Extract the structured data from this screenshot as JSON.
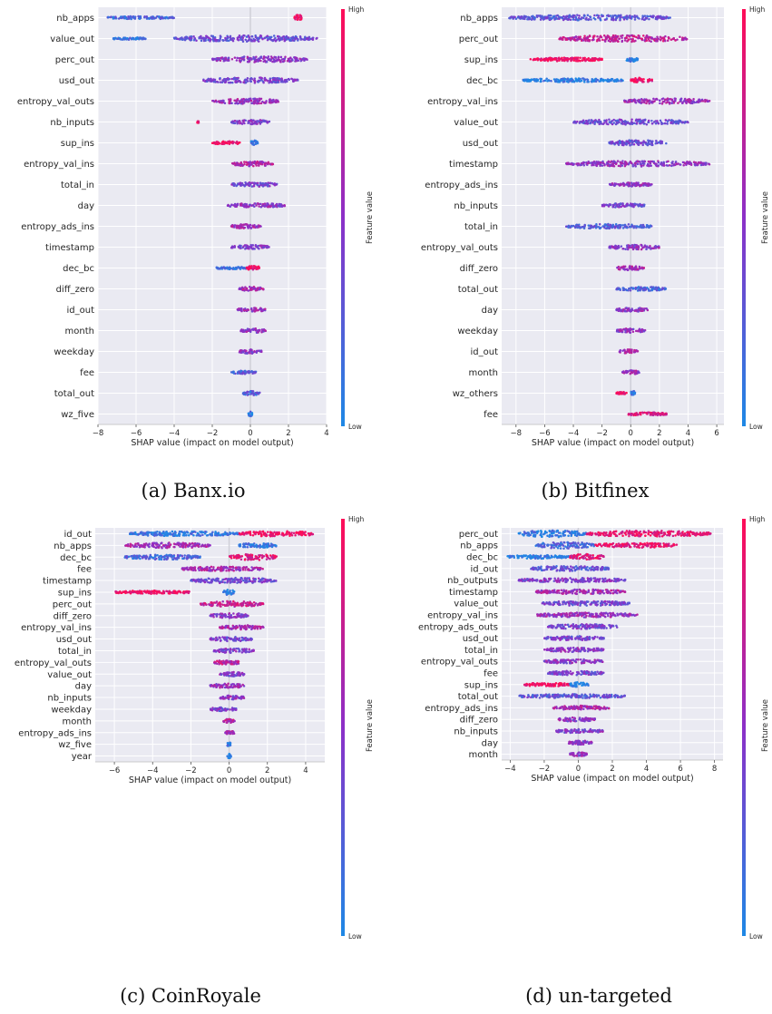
{
  "chart_data": [
    {
      "type": "scatter",
      "caption": "(a) Banx.io",
      "xlabel": "SHAP value (impact on model output)",
      "xlim": [
        -8,
        4
      ],
      "xticks": [
        -8,
        -6,
        -4,
        -2,
        0,
        2,
        4
      ],
      "colorbar": {
        "title": "Feature value",
        "high": "High",
        "low": "Low"
      },
      "features": [
        {
          "name": "nb_apps",
          "segments": [
            [
              -7.5,
              -4.0,
              1.0,
              0.2
            ],
            [
              2.3,
              2.7,
              3.0,
              0.95
            ]
          ]
        },
        {
          "name": "value_out",
          "segments": [
            [
              -7.2,
              -5.5,
              0.6,
              0.1
            ],
            [
              -4.0,
              3.5,
              2.8,
              0.35
            ]
          ]
        },
        {
          "name": "perc_out",
          "segments": [
            [
              -2.0,
              3.0,
              2.6,
              0.5
            ]
          ]
        },
        {
          "name": "usd_out",
          "segments": [
            [
              -2.5,
              2.5,
              2.4,
              0.4
            ]
          ]
        },
        {
          "name": "entropy_val_outs",
          "segments": [
            [
              -2.0,
              1.5,
              2.4,
              0.55
            ]
          ]
        },
        {
          "name": "nb_inputs",
          "segments": [
            [
              -2.8,
              -2.7,
              0.4,
              0.9
            ],
            [
              -1.0,
              1.0,
              2.0,
              0.45
            ]
          ]
        },
        {
          "name": "sup_ins",
          "segments": [
            [
              -2.0,
              -0.5,
              1.2,
              0.95
            ],
            [
              0.0,
              0.4,
              2.2,
              0.05
            ]
          ]
        },
        {
          "name": "entropy_val_ins",
          "segments": [
            [
              -1.0,
              1.2,
              2.0,
              0.65
            ]
          ]
        },
        {
          "name": "total_in",
          "segments": [
            [
              -1.0,
              1.4,
              1.8,
              0.4
            ]
          ]
        },
        {
          "name": "day",
          "segments": [
            [
              -1.2,
              1.8,
              1.8,
              0.5
            ]
          ]
        },
        {
          "name": "entropy_ads_ins",
          "segments": [
            [
              -1.0,
              0.6,
              1.8,
              0.6
            ]
          ]
        },
        {
          "name": "timestamp",
          "segments": [
            [
              -1.0,
              1.0,
              1.8,
              0.45
            ]
          ]
        },
        {
          "name": "dec_bc",
          "segments": [
            [
              -1.8,
              -0.2,
              0.8,
              0.1
            ],
            [
              -0.2,
              0.5,
              2.0,
              0.9
            ]
          ]
        },
        {
          "name": "diff_zero",
          "segments": [
            [
              -0.6,
              0.7,
              1.8,
              0.6
            ]
          ]
        },
        {
          "name": "id_out",
          "segments": [
            [
              -0.7,
              0.8,
              1.8,
              0.55
            ]
          ]
        },
        {
          "name": "month",
          "segments": [
            [
              -0.5,
              0.8,
              1.7,
              0.5
            ]
          ]
        },
        {
          "name": "weekday",
          "segments": [
            [
              -0.6,
              0.6,
              1.7,
              0.5
            ]
          ]
        },
        {
          "name": "fee",
          "segments": [
            [
              -1.0,
              0.3,
              1.2,
              0.25
            ]
          ]
        },
        {
          "name": "total_out",
          "segments": [
            [
              -0.4,
              0.5,
              1.7,
              0.25
            ]
          ]
        },
        {
          "name": "wz_five",
          "segments": [
            [
              -0.1,
              0.1,
              2.2,
              0.1
            ]
          ]
        }
      ]
    },
    {
      "type": "scatter",
      "caption": "(b) Bitfinex",
      "xlabel": "SHAP value (impact on model output)",
      "xlim": [
        -9,
        6.5
      ],
      "xticks": [
        -8,
        -6,
        -4,
        -2,
        0,
        2,
        4,
        6
      ],
      "colorbar": {
        "title": "Feature value",
        "high": "High",
        "low": "Low"
      },
      "features": [
        {
          "name": "nb_apps",
          "segments": [
            [
              -8.5,
              2.8,
              2.4,
              0.3
            ]
          ]
        },
        {
          "name": "perc_out",
          "segments": [
            [
              -5.0,
              4.0,
              3.0,
              0.7
            ]
          ]
        },
        {
          "name": "sup_ins",
          "segments": [
            [
              -7.0,
              -2.0,
              1.4,
              0.95
            ],
            [
              -0.3,
              0.5,
              2.2,
              0.05
            ]
          ]
        },
        {
          "name": "dec_bc",
          "segments": [
            [
              -7.5,
              -0.5,
              1.4,
              0.05
            ],
            [
              0.0,
              1.5,
              2.4,
              0.9
            ]
          ]
        },
        {
          "name": "entropy_val_ins",
          "segments": [
            [
              -0.5,
              5.5,
              2.4,
              0.55
            ]
          ]
        },
        {
          "name": "value_out",
          "segments": [
            [
              -4.0,
              4.0,
              2.4,
              0.35
            ]
          ]
        },
        {
          "name": "usd_out",
          "segments": [
            [
              -1.5,
              2.5,
              2.4,
              0.35
            ]
          ]
        },
        {
          "name": "timestamp",
          "segments": [
            [
              -4.5,
              5.5,
              2.4,
              0.5
            ]
          ]
        },
        {
          "name": "entropy_ads_ins",
          "segments": [
            [
              -1.5,
              1.5,
              1.6,
              0.55
            ]
          ]
        },
        {
          "name": "nb_inputs",
          "segments": [
            [
              -2.0,
              1.0,
              1.6,
              0.4
            ]
          ]
        },
        {
          "name": "total_in",
          "segments": [
            [
              -4.5,
              1.5,
              2.0,
              0.25
            ]
          ]
        },
        {
          "name": "entropy_val_outs",
          "segments": [
            [
              -1.5,
              2.0,
              2.0,
              0.5
            ]
          ]
        },
        {
          "name": "diff_zero",
          "segments": [
            [
              -1.0,
              1.0,
              1.8,
              0.6
            ]
          ]
        },
        {
          "name": "total_out",
          "segments": [
            [
              -1.0,
              2.5,
              1.6,
              0.2
            ]
          ]
        },
        {
          "name": "day",
          "segments": [
            [
              -1.0,
              1.2,
              1.6,
              0.5
            ]
          ]
        },
        {
          "name": "weekday",
          "segments": [
            [
              -1.0,
              1.0,
              1.6,
              0.5
            ]
          ]
        },
        {
          "name": "id_out",
          "segments": [
            [
              -0.8,
              0.5,
              1.6,
              0.6
            ]
          ]
        },
        {
          "name": "month",
          "segments": [
            [
              -0.6,
              0.6,
              1.6,
              0.55
            ]
          ]
        },
        {
          "name": "wz_others",
          "segments": [
            [
              -1.0,
              -0.3,
              0.8,
              0.95
            ],
            [
              0.0,
              0.3,
              2.0,
              0.05
            ]
          ]
        },
        {
          "name": "fee",
          "segments": [
            [
              -0.2,
              2.5,
              1.2,
              0.85
            ]
          ]
        }
      ]
    },
    {
      "type": "scatter",
      "caption": "(c) CoinRoyale",
      "xlabel": "SHAP value (impact on model output)",
      "xlim": [
        -7,
        5
      ],
      "xticks": [
        -6,
        -4,
        -2,
        0,
        2,
        4
      ],
      "colorbar": {
        "title": "Feature value",
        "high": "High",
        "low": "Low"
      },
      "features": [
        {
          "name": "id_out",
          "segments": [
            [
              -5.2,
              0.5,
              2.0,
              0.1
            ],
            [
              0.5,
              4.5,
              2.4,
              0.95
            ]
          ]
        },
        {
          "name": "nb_apps",
          "segments": [
            [
              -5.5,
              -1.0,
              2.4,
              0.6
            ],
            [
              0.5,
              2.5,
              2.0,
              0.1
            ]
          ]
        },
        {
          "name": "dec_bc",
          "segments": [
            [
              -5.5,
              -1.5,
              2.0,
              0.2
            ],
            [
              0.0,
              2.5,
              2.8,
              0.85
            ]
          ]
        },
        {
          "name": "fee",
          "segments": [
            [
              -2.5,
              1.8,
              1.8,
              0.6
            ]
          ]
        },
        {
          "name": "timestamp",
          "segments": [
            [
              -2.0,
              2.5,
              2.4,
              0.4
            ]
          ]
        },
        {
          "name": "sup_ins",
          "segments": [
            [
              -6.0,
              -2.0,
              1.2,
              0.95
            ],
            [
              -0.3,
              0.3,
              2.4,
              0.05
            ]
          ]
        },
        {
          "name": "perc_out",
          "segments": [
            [
              -1.5,
              1.8,
              2.4,
              0.75
            ]
          ]
        },
        {
          "name": "diff_zero",
          "segments": [
            [
              -1.0,
              1.0,
              2.0,
              0.5
            ]
          ]
        },
        {
          "name": "entropy_val_ins",
          "segments": [
            [
              -0.5,
              1.8,
              1.8,
              0.6
            ]
          ]
        },
        {
          "name": "usd_out",
          "segments": [
            [
              -1.0,
              1.2,
              1.8,
              0.4
            ]
          ]
        },
        {
          "name": "total_in",
          "segments": [
            [
              -0.8,
              1.3,
              1.8,
              0.45
            ]
          ]
        },
        {
          "name": "entropy_val_outs",
          "segments": [
            [
              -0.8,
              0.6,
              1.8,
              0.7
            ]
          ]
        },
        {
          "name": "value_out",
          "segments": [
            [
              -0.5,
              0.8,
              1.8,
              0.45
            ]
          ]
        },
        {
          "name": "day",
          "segments": [
            [
              -1.0,
              0.8,
              1.8,
              0.55
            ]
          ]
        },
        {
          "name": "nb_inputs",
          "segments": [
            [
              -0.5,
              0.8,
              1.6,
              0.5
            ]
          ]
        },
        {
          "name": "weekday",
          "segments": [
            [
              -1.0,
              0.4,
              1.6,
              0.4
            ]
          ]
        },
        {
          "name": "month",
          "segments": [
            [
              -0.3,
              0.3,
              1.6,
              0.7
            ]
          ]
        },
        {
          "name": "entropy_ads_ins",
          "segments": [
            [
              -0.2,
              0.3,
              1.4,
              0.6
            ]
          ]
        },
        {
          "name": "wz_five",
          "segments": [
            [
              -0.1,
              0.1,
              2.2,
              0.1
            ]
          ]
        },
        {
          "name": "year",
          "segments": [
            [
              -0.1,
              0.1,
              2.0,
              0.1
            ]
          ]
        }
      ]
    },
    {
      "type": "scatter",
      "caption": "(d) un-targeted",
      "xlabel": "SHAP value (impact on model output)",
      "xlim": [
        -4.5,
        8.5
      ],
      "xticks": [
        -4,
        -2,
        0,
        2,
        4,
        6,
        8
      ],
      "colorbar": {
        "title": "Feature value",
        "high": "High",
        "low": "Low"
      },
      "features": [
        {
          "name": "perc_out",
          "segments": [
            [
              -3.5,
              0.5,
              3.2,
              0.1
            ],
            [
              0.5,
              7.8,
              2.6,
              0.9
            ]
          ]
        },
        {
          "name": "nb_apps",
          "segments": [
            [
              -2.5,
              1.0,
              3.0,
              0.2
            ],
            [
              1.0,
              5.8,
              2.0,
              0.9
            ]
          ]
        },
        {
          "name": "dec_bc",
          "segments": [
            [
              -4.2,
              -0.5,
              1.4,
              0.05
            ],
            [
              -0.5,
              1.5,
              2.6,
              0.85
            ]
          ]
        },
        {
          "name": "id_out",
          "segments": [
            [
              -2.8,
              1.8,
              2.2,
              0.3
            ]
          ]
        },
        {
          "name": "nb_outputs",
          "segments": [
            [
              -3.5,
              2.8,
              1.8,
              0.45
            ]
          ]
        },
        {
          "name": "timestamp",
          "segments": [
            [
              -2.5,
              2.8,
              2.0,
              0.6
            ]
          ]
        },
        {
          "name": "value_out",
          "segments": [
            [
              -2.2,
              3.0,
              2.0,
              0.4
            ]
          ]
        },
        {
          "name": "entropy_val_ins",
          "segments": [
            [
              -2.5,
              3.5,
              2.0,
              0.55
            ]
          ]
        },
        {
          "name": "entropy_ads_outs",
          "segments": [
            [
              -1.8,
              2.3,
              2.0,
              0.4
            ]
          ]
        },
        {
          "name": "usd_out",
          "segments": [
            [
              -2.0,
              1.5,
              1.8,
              0.4
            ]
          ]
        },
        {
          "name": "total_in",
          "segments": [
            [
              -2.0,
              1.5,
              1.8,
              0.5
            ]
          ]
        },
        {
          "name": "entropy_val_outs",
          "segments": [
            [
              -2.0,
              1.5,
              1.8,
              0.5
            ]
          ]
        },
        {
          "name": "fee",
          "segments": [
            [
              -1.8,
              1.5,
              1.8,
              0.4
            ]
          ]
        },
        {
          "name": "sup_ins",
          "segments": [
            [
              -3.2,
              -0.5,
              1.4,
              0.95
            ],
            [
              -0.5,
              0.6,
              2.2,
              0.05
            ]
          ]
        },
        {
          "name": "total_out",
          "segments": [
            [
              -3.5,
              2.8,
              1.6,
              0.3
            ]
          ]
        },
        {
          "name": "entropy_ads_ins",
          "segments": [
            [
              -1.5,
              1.8,
              1.8,
              0.6
            ]
          ]
        },
        {
          "name": "diff_zero",
          "segments": [
            [
              -1.2,
              1.0,
              1.8,
              0.5
            ]
          ]
        },
        {
          "name": "nb_inputs",
          "segments": [
            [
              -1.3,
              1.5,
              1.6,
              0.45
            ]
          ]
        },
        {
          "name": "day",
          "segments": [
            [
              -0.7,
              0.8,
              1.6,
              0.5
            ]
          ]
        },
        {
          "name": "month",
          "segments": [
            [
              -0.5,
              0.5,
              1.6,
              0.5
            ]
          ]
        }
      ]
    }
  ],
  "colors": {
    "low": "#1e88e5",
    "high": "#ff0d57",
    "background": "#eaeaf2",
    "grid": "#ffffff"
  }
}
